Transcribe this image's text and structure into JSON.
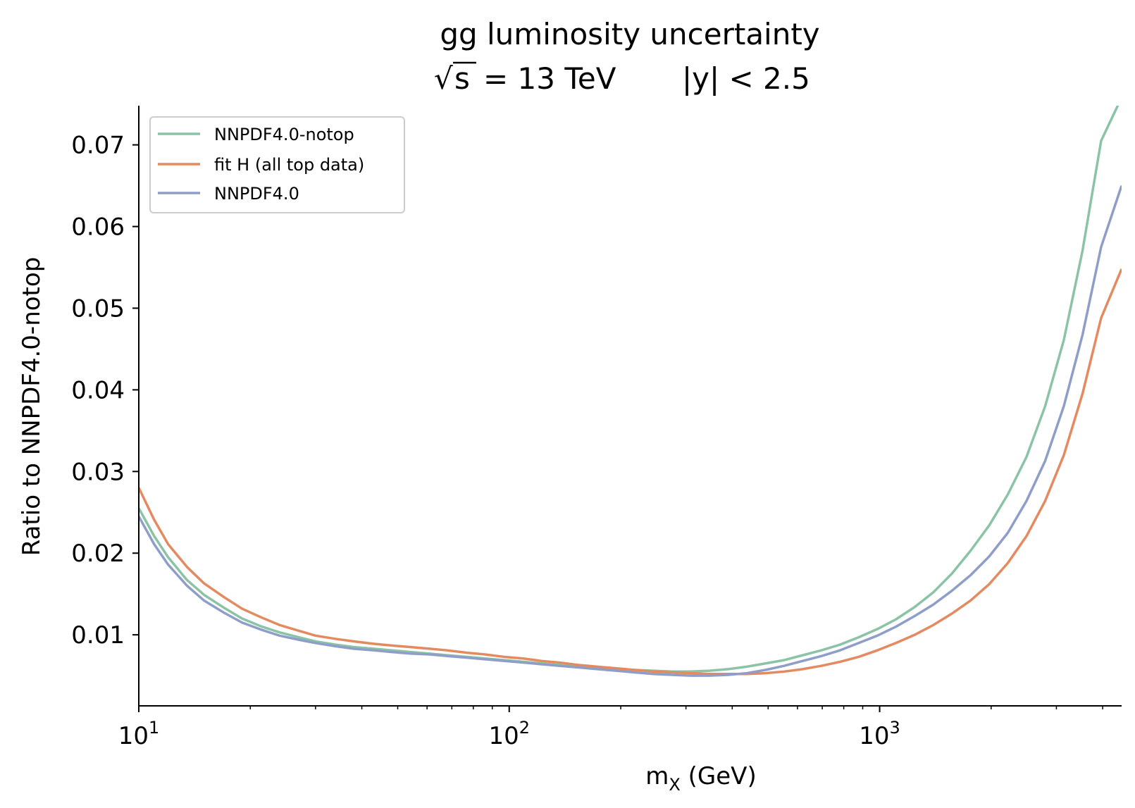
{
  "chart_data": {
    "type": "line",
    "title": "gg luminosity uncertainty",
    "subtitle": {
      "sqrt_symbol": "√",
      "s_text": "s",
      "energy_text": "= 13 TeV",
      "rapidity_text": "|y| < 2.5"
    },
    "xlabel": {
      "main": "m",
      "sub": "X",
      "unit": " (GeV)"
    },
    "ylabel": "Ratio to NNPDF4.0-notop",
    "xscale": "log",
    "xlim": [
      10,
      4500
    ],
    "ylim": [
      0.0013,
      0.0748
    ],
    "yticks": [
      {
        "value": 0.01,
        "label": "0.01"
      },
      {
        "value": 0.02,
        "label": "0.02"
      },
      {
        "value": 0.03,
        "label": "0.03"
      },
      {
        "value": 0.04,
        "label": "0.04"
      },
      {
        "value": 0.05,
        "label": "0.05"
      },
      {
        "value": 0.06,
        "label": "0.06"
      },
      {
        "value": 0.07,
        "label": "0.07"
      }
    ],
    "xticks": [
      {
        "value": 10,
        "base": "10",
        "exp": "1"
      },
      {
        "value": 100,
        "base": "10",
        "exp": "2"
      },
      {
        "value": 1000,
        "base": "10",
        "exp": "3"
      }
    ],
    "grid": false,
    "legend_position": "top-left",
    "x": [
      10,
      11,
      12,
      13.5,
      15,
      17,
      19,
      21.5,
      24,
      27,
      30,
      34,
      38,
      43,
      48,
      54,
      61,
      68,
      77,
      86,
      97,
      109,
      122,
      137,
      154,
      173,
      194,
      218,
      245,
      275,
      309,
      347,
      390,
      438,
      492,
      552,
      620,
      696,
      782,
      878,
      986,
      1107,
      1243,
      1396,
      1567,
      1760,
      1976,
      2219,
      2492,
      2798,
      3142,
      3528,
      3962,
      4500
    ],
    "series": [
      {
        "name": "NNPDF4.0-notop",
        "color": "#8bc3a6",
        "values": [
          0.0255,
          0.0221,
          0.0195,
          0.0167,
          0.0149,
          0.0133,
          0.012,
          0.011,
          0.0103,
          0.0097,
          0.0092,
          0.0088,
          0.0085,
          0.0083,
          0.0081,
          0.0079,
          0.0077,
          0.0075,
          0.0073,
          0.0071,
          0.0069,
          0.0067,
          0.0065,
          0.0063,
          0.0061,
          0.0059,
          0.0058,
          0.0057,
          0.0056,
          0.0055,
          0.0055,
          0.0056,
          0.0058,
          0.0061,
          0.0065,
          0.0069,
          0.0075,
          0.0081,
          0.0088,
          0.0097,
          0.0107,
          0.0119,
          0.0134,
          0.0152,
          0.0175,
          0.0203,
          0.0234,
          0.0272,
          0.0318,
          0.038,
          0.0461,
          0.057,
          0.0705,
          0.0758
        ]
      },
      {
        "name": "fit H (all top data)",
        "color": "#e48a60",
        "values": [
          0.028,
          0.0241,
          0.0211,
          0.0183,
          0.0163,
          0.0146,
          0.0132,
          0.0121,
          0.0112,
          0.0105,
          0.0099,
          0.0095,
          0.0092,
          0.0089,
          0.0087,
          0.0085,
          0.0083,
          0.0081,
          0.0078,
          0.0076,
          0.0073,
          0.0071,
          0.0068,
          0.0066,
          0.0063,
          0.0061,
          0.0059,
          0.0057,
          0.0055,
          0.0054,
          0.0053,
          0.0052,
          0.0052,
          0.0052,
          0.0053,
          0.0055,
          0.0058,
          0.0062,
          0.0067,
          0.0073,
          0.0081,
          0.009,
          0.01,
          0.0112,
          0.0126,
          0.0142,
          0.0162,
          0.0188,
          0.0221,
          0.0264,
          0.032,
          0.0395,
          0.0488,
          0.0548
        ]
      },
      {
        "name": "NNPDF4.0",
        "color": "#8e9ec9",
        "values": [
          0.0245,
          0.0211,
          0.0186,
          0.016,
          0.0142,
          0.0127,
          0.0115,
          0.0106,
          0.0099,
          0.0094,
          0.009,
          0.0086,
          0.0083,
          0.0081,
          0.0079,
          0.0077,
          0.0076,
          0.0074,
          0.0072,
          0.007,
          0.0068,
          0.0066,
          0.0064,
          0.0062,
          0.006,
          0.0058,
          0.0056,
          0.0054,
          0.0052,
          0.0051,
          0.005,
          0.005,
          0.0051,
          0.0053,
          0.0057,
          0.0062,
          0.0068,
          0.0074,
          0.0081,
          0.009,
          0.0099,
          0.011,
          0.0123,
          0.0137,
          0.0154,
          0.0173,
          0.0196,
          0.0225,
          0.0264,
          0.0313,
          0.038,
          0.0467,
          0.0575,
          0.065
        ]
      }
    ]
  }
}
